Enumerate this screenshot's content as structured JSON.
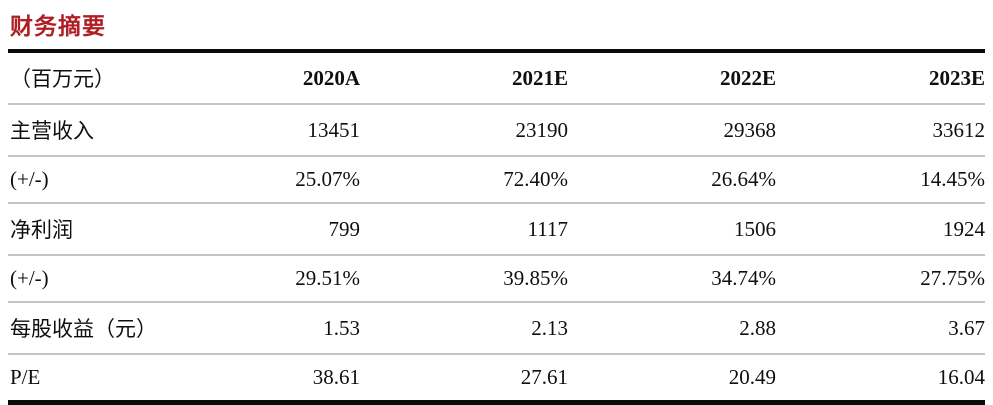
{
  "title": "财务摘要",
  "colors": {
    "title_red": "#b01e23",
    "thick_rule": "#0a0a0a",
    "row_separator": "#c4c4c4",
    "text": "#0f0f0f",
    "background": "#ffffff"
  },
  "table": {
    "header": [
      "（百万元）",
      "2020A",
      "2021E",
      "2022E",
      "2023E"
    ],
    "rows": [
      [
        "主营收入",
        "13451",
        "23190",
        "29368",
        "33612"
      ],
      [
        "(+/-)",
        "25.07%",
        "72.40%",
        "26.64%",
        "14.45%"
      ],
      [
        "净利润",
        "799",
        "1117",
        "1506",
        "1924"
      ],
      [
        "(+/-)",
        "29.51%",
        "39.85%",
        "34.74%",
        "27.75%"
      ],
      [
        "每股收益（元）",
        "1.53",
        "2.13",
        "2.88",
        "3.67"
      ],
      [
        "P/E",
        "38.61",
        "27.61",
        "20.49",
        "16.04"
      ]
    ]
  },
  "chart_data": {
    "type": "table",
    "title": "财务摘要",
    "unit_label": "（百万元）",
    "columns": [
      "2020A",
      "2021E",
      "2022E",
      "2023E"
    ],
    "series": [
      {
        "name": "主营收入",
        "values": [
          13451,
          23190,
          29368,
          33612
        ]
      },
      {
        "name": "主营收入 (+/-)",
        "values": [
          "25.07%",
          "72.40%",
          "26.64%",
          "14.45%"
        ]
      },
      {
        "name": "净利润",
        "values": [
          799,
          1117,
          1506,
          1924
        ]
      },
      {
        "name": "净利润 (+/-)",
        "values": [
          "29.51%",
          "39.85%",
          "34.74%",
          "27.75%"
        ]
      },
      {
        "name": "每股收益（元）",
        "values": [
          1.53,
          2.13,
          2.88,
          3.67
        ]
      },
      {
        "name": "P/E",
        "values": [
          38.61,
          27.61,
          20.49,
          16.04
        ]
      }
    ]
  }
}
